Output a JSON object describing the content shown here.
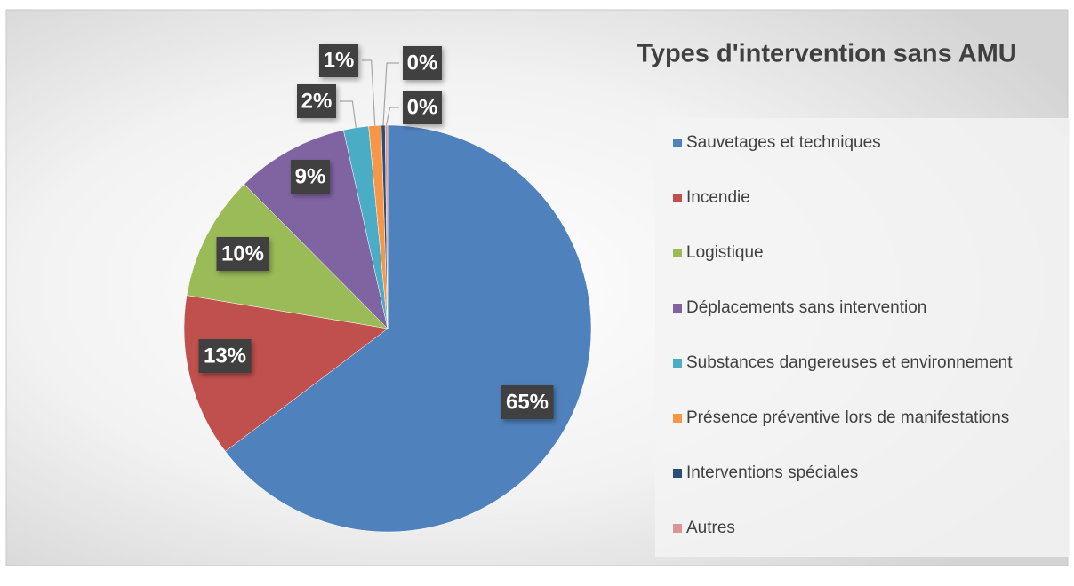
{
  "chart_data": {
    "type": "pie",
    "title": "Types d'intervention sans AMU",
    "categories": [
      "Sauvetages et techniques",
      "Incendie",
      "Logistique",
      "Déplacements sans intervention",
      "Substances dangereuses et environnement",
      "Présence préventive lors de manifestations",
      "Interventions spéciales",
      "Autres"
    ],
    "values": [
      65,
      13,
      10,
      9,
      2,
      1,
      0.3,
      0.2
    ],
    "value_labels": [
      "65%",
      "13%",
      "10%",
      "9%",
      "2%",
      "1%",
      "0%",
      "0%"
    ],
    "colors": [
      "#4f81bd",
      "#c0504d",
      "#9bbb59",
      "#8064a2",
      "#4bacc6",
      "#f79646",
      "#2c4d75",
      "#d99694"
    ],
    "legend": "right"
  }
}
